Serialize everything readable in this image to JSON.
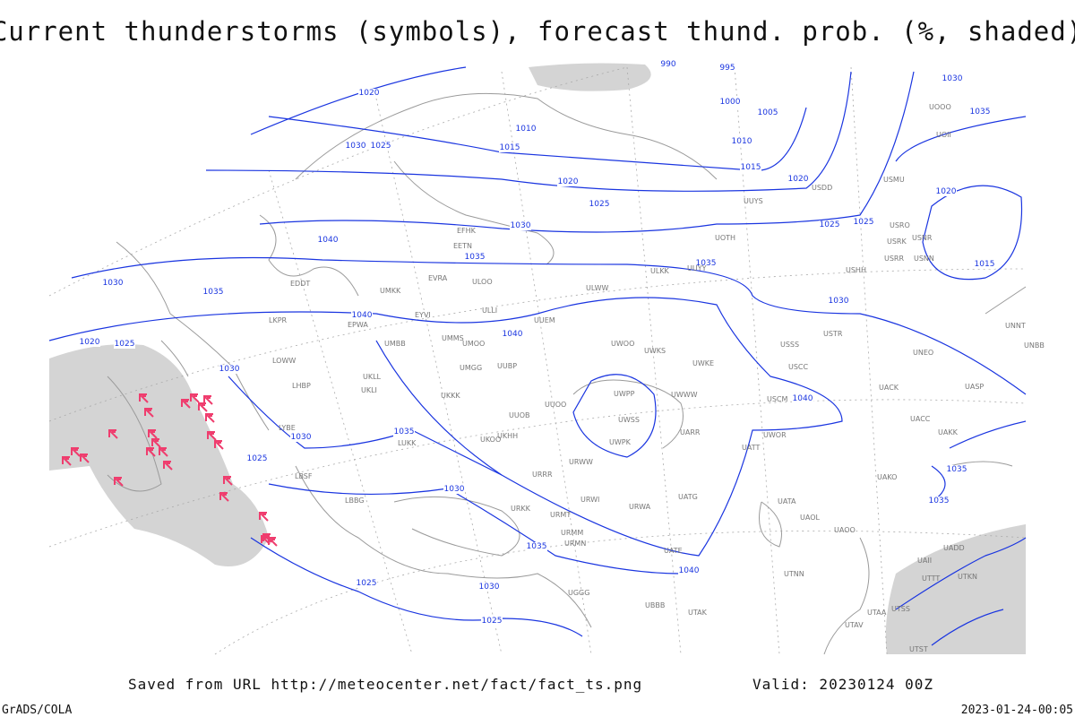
{
  "title": "Current thunderstorms (symbols), forecast thund. prob. (%, shaded)",
  "isobar_labels": [
    990,
    995,
    1020,
    1000,
    1005,
    1010,
    1010,
    1030,
    1025,
    1015,
    1015,
    1020,
    1020,
    1025,
    1030,
    1025,
    1025,
    1040,
    1035,
    1035,
    1030,
    1035,
    1030,
    1040,
    1040,
    1020,
    1025,
    1030,
    1040,
    1035,
    1030,
    1025,
    1030,
    1035,
    1040,
    1025,
    1030,
    1025,
    1030,
    1035,
    1020,
    1015,
    1035,
    1035
  ],
  "station_labels": [
    "EFHK",
    "EETN",
    "EVRA",
    "ULOO",
    "UMKK",
    "EYVI",
    "EPWA",
    "UMMS",
    "UMOO",
    "UMBB",
    "ULLI",
    "UUEM",
    "UWOO",
    "UWKS",
    "UWKE",
    "UWWW",
    "UWPP",
    "UWSS",
    "UWPK",
    "UARR",
    "UATT",
    "UWOR",
    "USCM",
    "USCC",
    "USSS",
    "USTR",
    "UNBB",
    "UNEO",
    "UACK",
    "UACC",
    "UAKK",
    "UAKO",
    "UATA",
    "UAOL",
    "UAOO",
    "UKLL",
    "UKLI",
    "UKKK",
    "UMGG",
    "UUBP",
    "UUOB",
    "UUOO",
    "UKHH",
    "UKOO",
    "LUKK",
    "URWW",
    "URRR",
    "URKK",
    "URWI",
    "URWA",
    "UATG",
    "URMT",
    "URMM",
    "URMN",
    "UATE",
    "UTNN",
    "UTAK",
    "UBBB",
    "UGGG",
    "LBSF",
    "LBBG",
    "LYBE",
    "LHBP",
    "LOWW",
    "LKPR",
    "EDDT",
    "ULWW",
    "ULKK",
    "UUYY",
    "UUYS",
    "UOTH",
    "USRR",
    "USRK",
    "USNR",
    "USNN",
    "USRO",
    "USMU",
    "USDD",
    "USHH",
    "UNNT",
    "UOII",
    "UOOO",
    "UASP",
    "UAII",
    "UADD",
    "UTKN",
    "UTTT",
    "UTAA",
    "UTAV",
    "UTSS",
    "UTST"
  ],
  "footer": {
    "source": "Saved from URL http://meteocenter.net/fact/fact_ts.png",
    "valid": "Valid: 20230124 00Z",
    "credit": "GrADS/COLA",
    "timestamp": "2023-01-24-00:05"
  }
}
